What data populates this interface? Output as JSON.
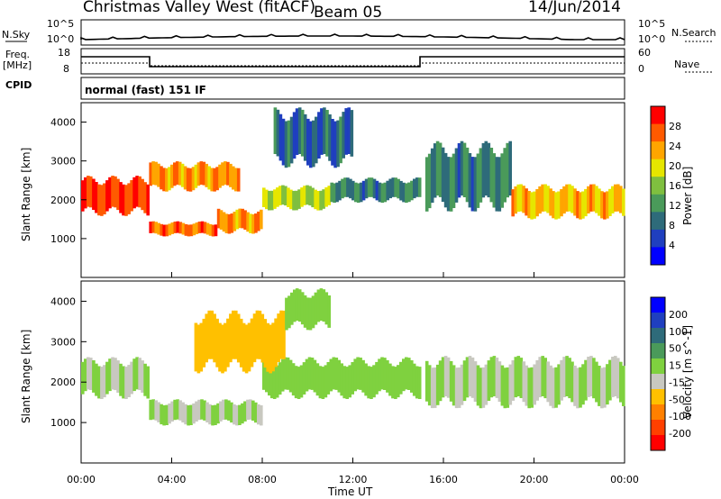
{
  "header": {
    "station": "Christmas Valley West (fitACF)",
    "beam": "Beam 05",
    "date": "14/Jun/2014"
  },
  "top_panel": {
    "nsky_label": "N.Sky",
    "nsky_ticks": [
      "10^5",
      "10^0"
    ],
    "nsearch_label": "N.Search",
    "nsearch_ticks": [
      "10^5",
      "10^0"
    ],
    "freq_label": "Freq.",
    "freq_unit": "[MHz]",
    "freq_ticks": [
      "18",
      "8"
    ],
    "nave_label": "Nave",
    "nave_ticks": [
      "60",
      "0"
    ],
    "cpid_label": "CPID",
    "cpid_value": "normal (fast) 151 IF"
  },
  "colors": {
    "power": [
      "#0000ff",
      "#1f3fbf",
      "#2e6b7a",
      "#4a9a5a",
      "#7fbf3f",
      "#e6e600",
      "#ffa500",
      "#ff5a00",
      "#ff0000"
    ],
    "velocity": [
      "#0000ff",
      "#1f3fbf",
      "#2e6b7a",
      "#4a9a5a",
      "#7fd13f",
      "#c8c8c0",
      "#ffc000",
      "#ff8000",
      "#ff4000",
      "#ff0000"
    ]
  },
  "chart_data": [
    {
      "type": "heatmap",
      "name": "power",
      "ylabel": "Slant Range [km]",
      "ylim": [
        0,
        4500
      ],
      "xlim": [
        0,
        24
      ],
      "yticks": [
        "1000",
        "2000",
        "3000",
        "4000"
      ],
      "colorbar_label": "Power [dB]",
      "colorbar_ticks": [
        "4",
        "8",
        "12",
        "16",
        "20",
        "24",
        "28"
      ],
      "bands": [
        {
          "x": [
            0,
            3
          ],
          "y": [
            1700,
            2500
          ],
          "value": 28
        },
        {
          "x": [
            3,
            6
          ],
          "y": [
            1100,
            1400
          ],
          "value": 26
        },
        {
          "x": [
            6,
            8
          ],
          "y": [
            1200,
            1700
          ],
          "value": 24
        },
        {
          "x": [
            8,
            11
          ],
          "y": [
            1800,
            2300
          ],
          "value": 18
        },
        {
          "x": [
            11,
            15
          ],
          "y": [
            2000,
            2500
          ],
          "value": 10
        },
        {
          "x": [
            15.2,
            19
          ],
          "y": [
            1900,
            3300
          ],
          "value": 10
        },
        {
          "x": [
            19,
            24
          ],
          "y": [
            1600,
            2300
          ],
          "value": 22
        },
        {
          "x": [
            3,
            7
          ],
          "y": [
            2300,
            2900
          ],
          "value": 24
        },
        {
          "x": [
            8.5,
            12
          ],
          "y": [
            3000,
            4200
          ],
          "value": 8
        }
      ]
    },
    {
      "type": "heatmap",
      "name": "velocity",
      "xlabel": "Time UT",
      "ylabel": "Slant Range [km]",
      "ylim": [
        0,
        4500
      ],
      "xlim": [
        0,
        24
      ],
      "xticks": [
        "00:00",
        "04:00",
        "08:00",
        "12:00",
        "16:00",
        "20:00",
        "00:00"
      ],
      "yticks": [
        "1000",
        "2000",
        "3000",
        "4000"
      ],
      "colorbar_label": "Velocity [m s^-1]",
      "colorbar_ticks": [
        "200",
        "100",
        "50",
        "15",
        "-15",
        "-50",
        "-100",
        "-200"
      ],
      "bands": [
        {
          "x": [
            0,
            3
          ],
          "y": [
            1700,
            2500
          ],
          "value": 0
        },
        {
          "x": [
            3,
            8
          ],
          "y": [
            1000,
            1500
          ],
          "value": 0
        },
        {
          "x": [
            8,
            15
          ],
          "y": [
            1700,
            2500
          ],
          "value": 20
        },
        {
          "x": [
            15.2,
            24
          ],
          "y": [
            1500,
            2500
          ],
          "value": 0
        },
        {
          "x": [
            5,
            9
          ],
          "y": [
            2400,
            3600
          ],
          "value": -60
        },
        {
          "x": [
            9,
            11
          ],
          "y": [
            3400,
            4200
          ],
          "value": 40
        }
      ]
    }
  ]
}
